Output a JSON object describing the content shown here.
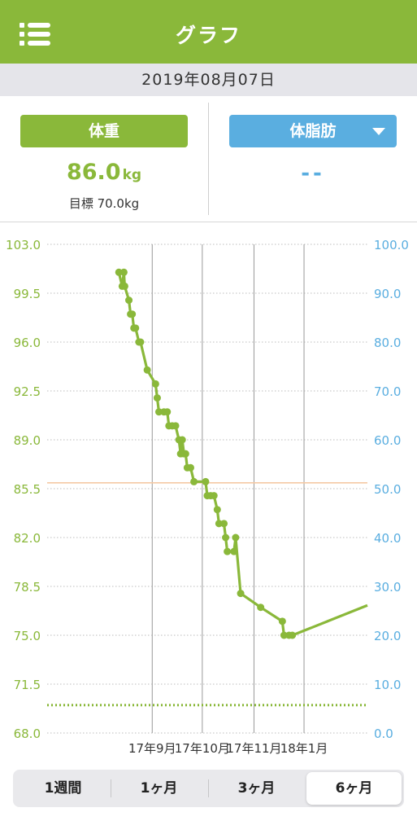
{
  "header": {
    "title": "グラフ",
    "menu_icon": "list-menu-icon"
  },
  "date": "2019年08月07日",
  "weight": {
    "label": "体重",
    "value": "86.0",
    "unit": "kg",
    "target_label": "目標 70.0kg",
    "color": "#8ab83a"
  },
  "bodyfat": {
    "label": "体脂肪",
    "value": "--",
    "dropdown_icon": "caret-down-icon",
    "color": "#5aaee0"
  },
  "tabs": [
    {
      "label": "1週間",
      "active": false
    },
    {
      "label": "1ヶ月",
      "active": false
    },
    {
      "label": "3ヶ月",
      "active": false
    },
    {
      "label": "6ヶ月",
      "active": true
    }
  ],
  "chart_data": {
    "type": "line",
    "left_axis": {
      "ticks": [
        "103.0",
        "99.5",
        "96.0",
        "92.5",
        "89.0",
        "85.5",
        "82.0",
        "78.5",
        "75.0",
        "71.5",
        "68.0"
      ],
      "range": [
        68.0,
        103.0
      ],
      "color": "#8ab83a"
    },
    "right_axis": {
      "ticks": [
        "100.0",
        "90.0",
        "80.0",
        "70.0",
        "60.0",
        "50.0",
        "40.0",
        "30.0",
        "20.0",
        "10.0",
        "0.0"
      ],
      "range": [
        0.0,
        100.0
      ],
      "color": "#5aaee0"
    },
    "x_labels": [
      {
        "label": "17年9月",
        "day": 63
      },
      {
        "label": "17年10月",
        "day": 93
      },
      {
        "label": "17年11月",
        "day": 124
      },
      {
        "label": "18年1月",
        "day": 154
      }
    ],
    "x_range_days": [
      0,
      192
    ],
    "target_line": {
      "value": 70.0,
      "color": "#8ab83a",
      "style": "dotted"
    },
    "reference_line": {
      "right_axis_value": 51.2,
      "color": "#f5c9a4"
    },
    "series": [
      {
        "points": [
          [
            43,
            101.0
          ],
          [
            45,
            100.0
          ],
          [
            46,
            101.0
          ],
          [
            46.5,
            100.0
          ],
          [
            49,
            99.0
          ],
          [
            50,
            98.0
          ],
          [
            51,
            98.0
          ],
          [
            52,
            97.0
          ],
          [
            53,
            97.0
          ],
          [
            55,
            96.0
          ],
          [
            56,
            96.0
          ],
          [
            60,
            94.0
          ],
          [
            65,
            93.0
          ],
          [
            66,
            92.0
          ],
          [
            67,
            91.0
          ],
          [
            70,
            91.0
          ],
          [
            72,
            91.0
          ],
          [
            73,
            90.0
          ],
          [
            75,
            90.0
          ],
          [
            77,
            90.0
          ],
          [
            79,
            89.0
          ],
          [
            80,
            88.0
          ],
          [
            81,
            89.0
          ],
          [
            82,
            88.0
          ],
          [
            83,
            88.0
          ],
          [
            84,
            87.0
          ],
          [
            86,
            87.0
          ],
          [
            88,
            86.0
          ],
          [
            95,
            86.0
          ],
          [
            96,
            85.0
          ],
          [
            98,
            85.0
          ],
          [
            100,
            85.0
          ],
          [
            102,
            84.0
          ],
          [
            103,
            83.0
          ],
          [
            106,
            83.0
          ],
          [
            107,
            82.0
          ],
          [
            108,
            81.0
          ],
          [
            112,
            81.0
          ],
          [
            113,
            82.0
          ],
          [
            116,
            78.0
          ],
          [
            128,
            77.0
          ],
          [
            141,
            76.0
          ],
          [
            142,
            75.0
          ],
          [
            145,
            75.0
          ],
          [
            147,
            75.0
          ],
          [
            168,
            76.0
          ]
        ]
      }
    ]
  }
}
